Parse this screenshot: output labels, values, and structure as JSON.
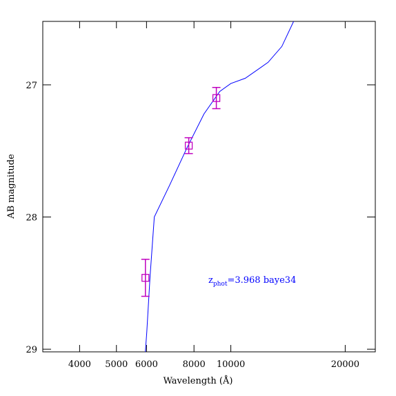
{
  "chart_data": {
    "type": "line",
    "x_label": "Wavelength (Å)",
    "y_label": "AB magnitude",
    "xscale": "log",
    "y_inverted": true,
    "xlim": [
      3200,
      24000
    ],
    "ylim": [
      26.52,
      29.02
    ],
    "xticks": [
      4000,
      5000,
      6000,
      8000,
      10000,
      20000
    ],
    "yticks": [
      27,
      28,
      29
    ],
    "x": [
      5958,
      6010,
      6130,
      6290,
      6900,
      7656,
      8500,
      9350,
      10000,
      10920,
      12530,
      13620,
      14630
    ],
    "values": [
      29.02,
      28.87,
      28.45,
      28.0,
      27.76,
      27.48,
      27.22,
      27.05,
      26.99,
      26.95,
      26.83,
      26.71,
      26.52
    ],
    "color": "#0000ff",
    "points": {
      "x": [
        5960,
        7750,
        9160
      ],
      "values": [
        28.46,
        27.46,
        27.1
      ],
      "errors": [
        0.14,
        0.06,
        0.08
      ],
      "color": "#c000c0"
    },
    "annotation": {
      "text": "z",
      "sub": "phot",
      "rest": "=3.968 baye34",
      "color": "#0000ff"
    }
  }
}
